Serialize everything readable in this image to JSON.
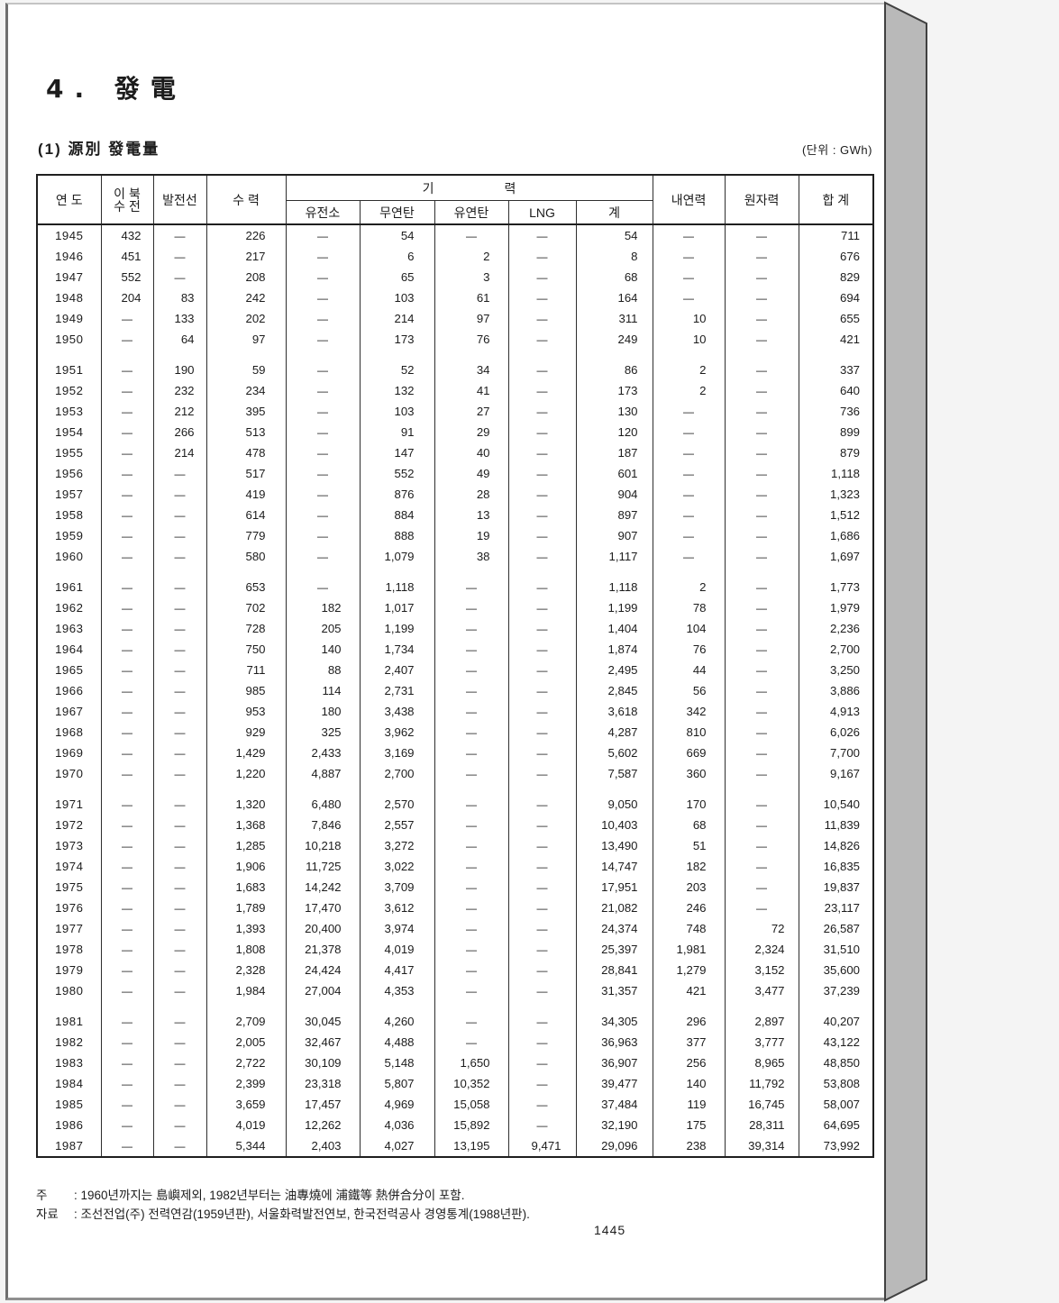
{
  "page": {
    "title": "4. 發電",
    "subtitle": "(1) 源別 發電量",
    "unit_label": "(단위 : GWh)",
    "page_number": "1445",
    "notes": [
      {
        "label": "주",
        "text": ": 1960년까지는 島嶼제외, 1982년부터는 油專燒에 浦鐵等 熱併合分이 포함."
      },
      {
        "label": "자료",
        "text": ": 조선전업(주) 전력연감(1959년판), 서울화력발전연보, 한국전력공사 경영통계(1988년판)."
      }
    ]
  },
  "table": {
    "headers": {
      "year": "연 도",
      "north_1": "이 북",
      "north_2": "수 전",
      "ship": "발전선",
      "hydro": "수 력",
      "thermal_group_1": "기",
      "thermal_group_2": "력",
      "sub": [
        "유전소",
        "무연탄",
        "유연탄",
        "LNG",
        "계"
      ],
      "internal": "내연력",
      "nuclear": "원자력",
      "total": "합 계"
    },
    "column_keys": [
      "year",
      "north_receive",
      "gen_ship",
      "hydro",
      "oil_fired",
      "anthracite",
      "bituminous",
      "lng",
      "thermal_total",
      "internal_combustion",
      "nuclear",
      "total"
    ],
    "gap_after": [
      "1950",
      "1960",
      "1970",
      "1980"
    ],
    "rows": [
      [
        "1945",
        "432",
        "—",
        "226",
        "—",
        "54",
        "—",
        "—",
        "54",
        "—",
        "—",
        "711"
      ],
      [
        "1946",
        "451",
        "—",
        "217",
        "—",
        "6",
        "2",
        "—",
        "8",
        "—",
        "—",
        "676"
      ],
      [
        "1947",
        "552",
        "—",
        "208",
        "—",
        "65",
        "3",
        "—",
        "68",
        "—",
        "—",
        "829"
      ],
      [
        "1948",
        "204",
        "83",
        "242",
        "—",
        "103",
        "61",
        "—",
        "164",
        "—",
        "—",
        "694"
      ],
      [
        "1949",
        "—",
        "133",
        "202",
        "—",
        "214",
        "97",
        "—",
        "311",
        "10",
        "—",
        "655"
      ],
      [
        "1950",
        "—",
        "64",
        "97",
        "—",
        "173",
        "76",
        "—",
        "249",
        "10",
        "—",
        "421"
      ],
      [
        "1951",
        "—",
        "190",
        "59",
        "—",
        "52",
        "34",
        "—",
        "86",
        "2",
        "—",
        "337"
      ],
      [
        "1952",
        "—",
        "232",
        "234",
        "—",
        "132",
        "41",
        "—",
        "173",
        "2",
        "—",
        "640"
      ],
      [
        "1953",
        "—",
        "212",
        "395",
        "—",
        "103",
        "27",
        "—",
        "130",
        "—",
        "—",
        "736"
      ],
      [
        "1954",
        "—",
        "266",
        "513",
        "—",
        "91",
        "29",
        "—",
        "120",
        "—",
        "—",
        "899"
      ],
      [
        "1955",
        "—",
        "214",
        "478",
        "—",
        "147",
        "40",
        "—",
        "187",
        "—",
        "—",
        "879"
      ],
      [
        "1956",
        "—",
        "—",
        "517",
        "—",
        "552",
        "49",
        "—",
        "601",
        "—",
        "—",
        "1,118"
      ],
      [
        "1957",
        "—",
        "—",
        "419",
        "—",
        "876",
        "28",
        "—",
        "904",
        "—",
        "—",
        "1,323"
      ],
      [
        "1958",
        "—",
        "—",
        "614",
        "—",
        "884",
        "13",
        "—",
        "897",
        "—",
        "—",
        "1,512"
      ],
      [
        "1959",
        "—",
        "—",
        "779",
        "—",
        "888",
        "19",
        "—",
        "907",
        "—",
        "—",
        "1,686"
      ],
      [
        "1960",
        "—",
        "—",
        "580",
        "—",
        "1,079",
        "38",
        "—",
        "1,117",
        "—",
        "—",
        "1,697"
      ],
      [
        "1961",
        "—",
        "—",
        "653",
        "—",
        "1,118",
        "—",
        "—",
        "1,118",
        "2",
        "—",
        "1,773"
      ],
      [
        "1962",
        "—",
        "—",
        "702",
        "182",
        "1,017",
        "—",
        "—",
        "1,199",
        "78",
        "—",
        "1,979"
      ],
      [
        "1963",
        "—",
        "—",
        "728",
        "205",
        "1,199",
        "—",
        "—",
        "1,404",
        "104",
        "—",
        "2,236"
      ],
      [
        "1964",
        "—",
        "—",
        "750",
        "140",
        "1,734",
        "—",
        "—",
        "1,874",
        "76",
        "—",
        "2,700"
      ],
      [
        "1965",
        "—",
        "—",
        "711",
        "88",
        "2,407",
        "—",
        "—",
        "2,495",
        "44",
        "—",
        "3,250"
      ],
      [
        "1966",
        "—",
        "—",
        "985",
        "114",
        "2,731",
        "—",
        "—",
        "2,845",
        "56",
        "—",
        "3,886"
      ],
      [
        "1967",
        "—",
        "—",
        "953",
        "180",
        "3,438",
        "—",
        "—",
        "3,618",
        "342",
        "—",
        "4,913"
      ],
      [
        "1968",
        "—",
        "—",
        "929",
        "325",
        "3,962",
        "—",
        "—",
        "4,287",
        "810",
        "—",
        "6,026"
      ],
      [
        "1969",
        "—",
        "—",
        "1,429",
        "2,433",
        "3,169",
        "—",
        "—",
        "5,602",
        "669",
        "—",
        "7,700"
      ],
      [
        "1970",
        "—",
        "—",
        "1,220",
        "4,887",
        "2,700",
        "—",
        "—",
        "7,587",
        "360",
        "—",
        "9,167"
      ],
      [
        "1971",
        "—",
        "—",
        "1,320",
        "6,480",
        "2,570",
        "—",
        "—",
        "9,050",
        "170",
        "—",
        "10,540"
      ],
      [
        "1972",
        "—",
        "—",
        "1,368",
        "7,846",
        "2,557",
        "—",
        "—",
        "10,403",
        "68",
        "—",
        "11,839"
      ],
      [
        "1973",
        "—",
        "—",
        "1,285",
        "10,218",
        "3,272",
        "—",
        "—",
        "13,490",
        "51",
        "—",
        "14,826"
      ],
      [
        "1974",
        "—",
        "—",
        "1,906",
        "11,725",
        "3,022",
        "—",
        "—",
        "14,747",
        "182",
        "—",
        "16,835"
      ],
      [
        "1975",
        "—",
        "—",
        "1,683",
        "14,242",
        "3,709",
        "—",
        "—",
        "17,951",
        "203",
        "—",
        "19,837"
      ],
      [
        "1976",
        "—",
        "—",
        "1,789",
        "17,470",
        "3,612",
        "—",
        "—",
        "21,082",
        "246",
        "—",
        "23,117"
      ],
      [
        "1977",
        "—",
        "—",
        "1,393",
        "20,400",
        "3,974",
        "—",
        "—",
        "24,374",
        "748",
        "72",
        "26,587"
      ],
      [
        "1978",
        "—",
        "—",
        "1,808",
        "21,378",
        "4,019",
        "—",
        "—",
        "25,397",
        "1,981",
        "2,324",
        "31,510"
      ],
      [
        "1979",
        "—",
        "—",
        "2,328",
        "24,424",
        "4,417",
        "—",
        "—",
        "28,841",
        "1,279",
        "3,152",
        "35,600"
      ],
      [
        "1980",
        "—",
        "—",
        "1,984",
        "27,004",
        "4,353",
        "—",
        "—",
        "31,357",
        "421",
        "3,477",
        "37,239"
      ],
      [
        "1981",
        "—",
        "—",
        "2,709",
        "30,045",
        "4,260",
        "—",
        "—",
        "34,305",
        "296",
        "2,897",
        "40,207"
      ],
      [
        "1982",
        "—",
        "—",
        "2,005",
        "32,467",
        "4,488",
        "—",
        "—",
        "36,963",
        "377",
        "3,777",
        "43,122"
      ],
      [
        "1983",
        "—",
        "—",
        "2,722",
        "30,109",
        "5,148",
        "1,650",
        "—",
        "36,907",
        "256",
        "8,965",
        "48,850"
      ],
      [
        "1984",
        "—",
        "—",
        "2,399",
        "23,318",
        "5,807",
        "10,352",
        "—",
        "39,477",
        "140",
        "11,792",
        "53,808"
      ],
      [
        "1985",
        "—",
        "—",
        "3,659",
        "17,457",
        "4,969",
        "15,058",
        "—",
        "37,484",
        "119",
        "16,745",
        "58,007"
      ],
      [
        "1986",
        "—",
        "—",
        "4,019",
        "12,262",
        "4,036",
        "15,892",
        "—",
        "32,190",
        "175",
        "28,311",
        "64,695"
      ],
      [
        "1987",
        "—",
        "—",
        "5,344",
        "2,403",
        "4,027",
        "13,195",
        "9,471",
        "29,096",
        "238",
        "39,314",
        "73,992"
      ]
    ]
  }
}
